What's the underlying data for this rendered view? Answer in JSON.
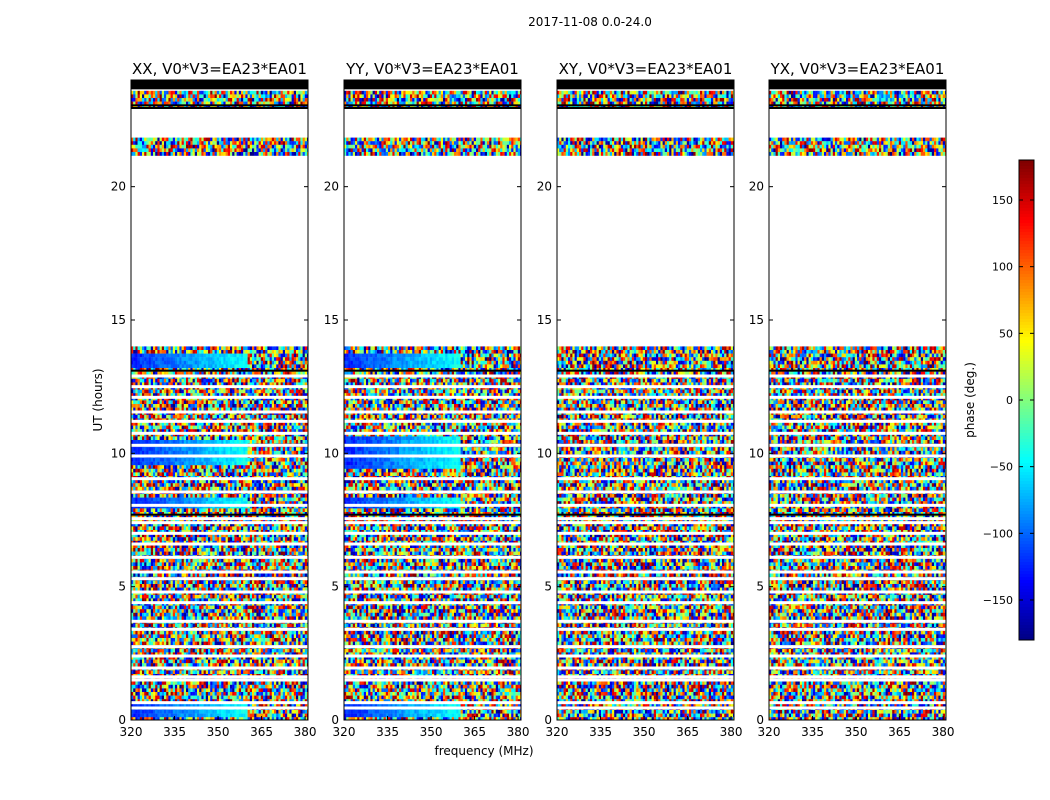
{
  "figure": {
    "suptitle": "2017-11-08 0.0-24.0",
    "xlabel": "frequency (MHz)",
    "ylabel": "UT (hours)",
    "colorbar_label": "phase (deg.)"
  },
  "chart_data": {
    "type": "heatmap",
    "suptitle": "2017-11-08 0.0-24.0",
    "xlabel": "frequency (MHz)",
    "ylabel": "UT (hours)",
    "xlim": [
      320,
      381
    ],
    "ylim": [
      0,
      24
    ],
    "xticks": [
      320,
      335,
      350,
      365,
      380
    ],
    "yticks": [
      0,
      5,
      10,
      15,
      20
    ],
    "colormap": "jet",
    "colorbar": {
      "label": "phase (deg.)",
      "range": [
        -180,
        180
      ],
      "ticks": [
        -150,
        -100,
        -50,
        0,
        50,
        100,
        150
      ]
    },
    "panels": [
      {
        "title": "XX, V0*V3=EA23*EA01",
        "coherent_bands": [
          [
            0.1,
            0.6
          ],
          [
            9.5,
            10.5
          ],
          [
            7.9,
            8.4
          ],
          [
            13.2,
            13.7
          ]
        ]
      },
      {
        "title": "YY, V0*V3=EA23*EA01",
        "coherent_bands": [
          [
            0.1,
            0.6
          ],
          [
            9.4,
            10.6
          ],
          [
            7.9,
            8.3
          ],
          [
            13.2,
            13.7
          ]
        ]
      },
      {
        "title": "XY, V0*V3=EA23*EA01",
        "coherent_bands": []
      },
      {
        "title": "YX, V0*V3=EA23*EA01",
        "coherent_bands": []
      }
    ],
    "data_blocks_ut": [
      [
        0,
        24
      ]
    ],
    "gap_ut": [
      [
        14.0,
        21.1
      ],
      [
        21.8,
        22.9
      ]
    ],
    "grid": false
  }
}
